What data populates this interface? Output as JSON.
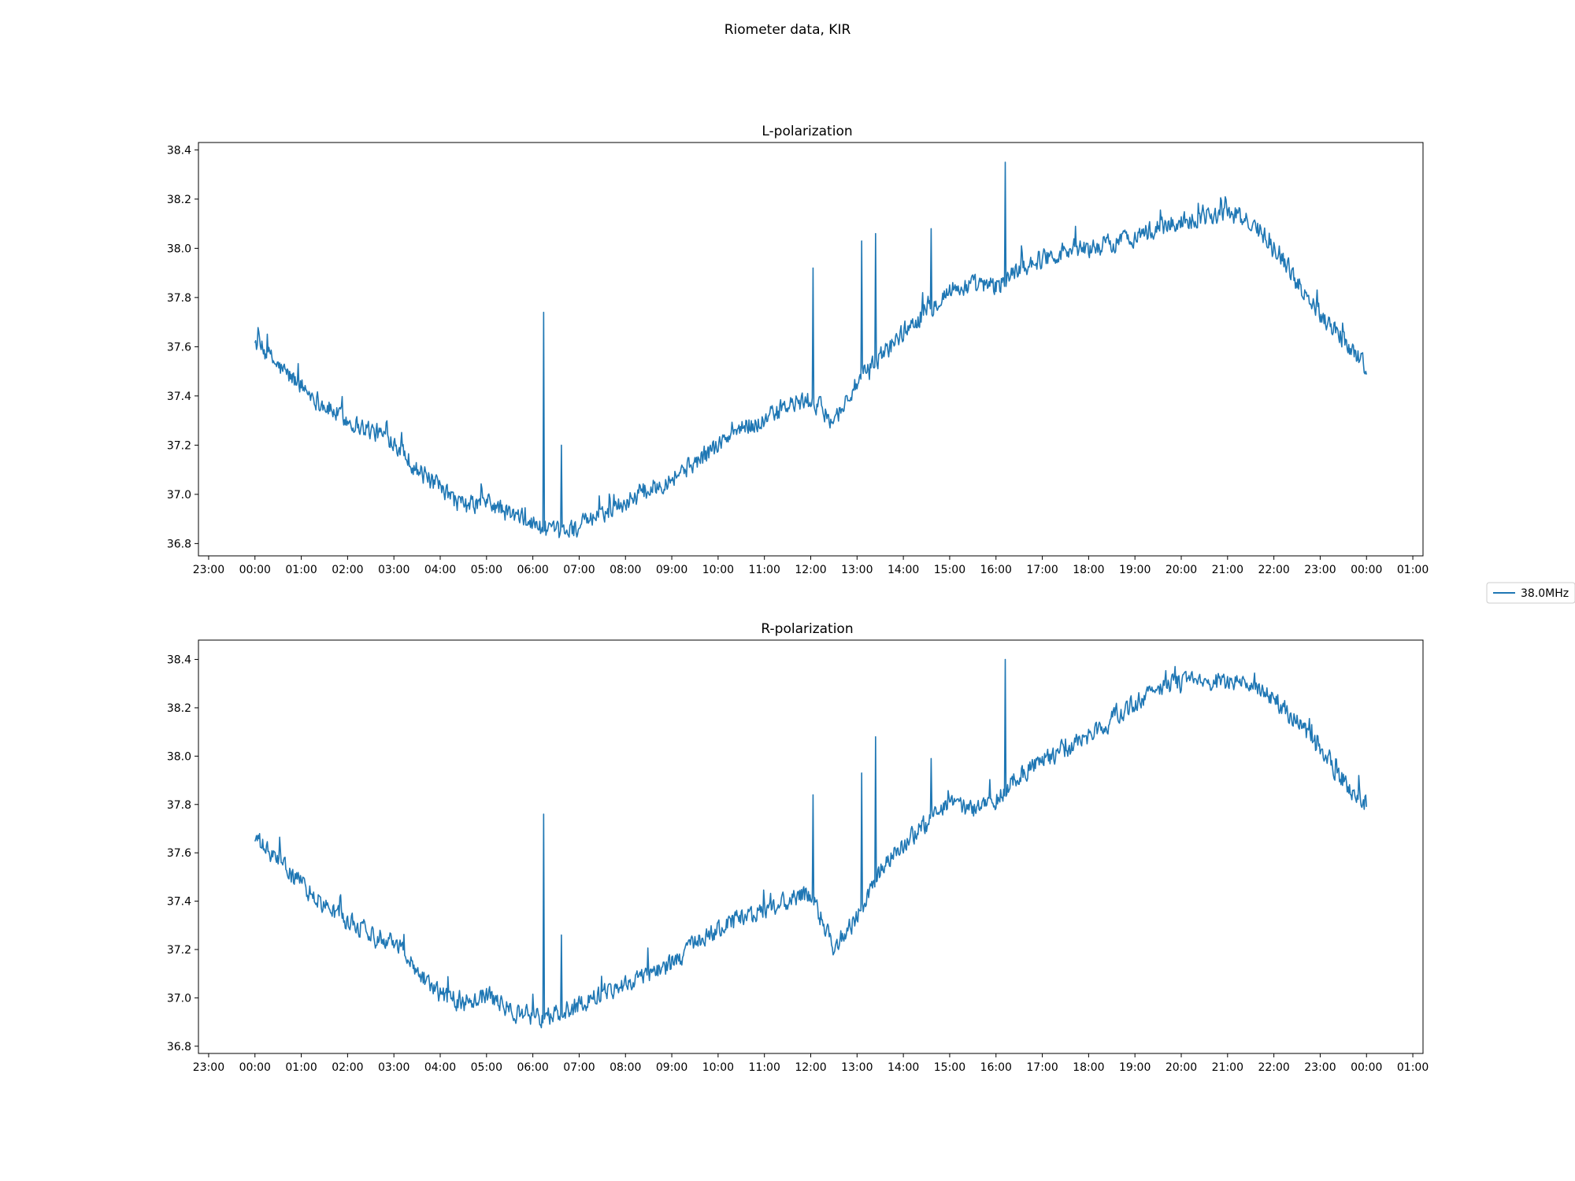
{
  "figure": {
    "title": "Riometer data, KIR"
  },
  "legend": {
    "label": "38.0MHz",
    "color": "#1f77b4",
    "placement": "center-right"
  },
  "x_tick_labels": [
    "23:00",
    "00:00",
    "01:00",
    "02:00",
    "03:00",
    "04:00",
    "05:00",
    "06:00",
    "07:00",
    "08:00",
    "09:00",
    "10:00",
    "11:00",
    "12:00",
    "13:00",
    "14:00",
    "15:00",
    "16:00",
    "17:00",
    "18:00",
    "19:00",
    "20:00",
    "21:00",
    "22:00",
    "23:00",
    "00:00",
    "01:00"
  ],
  "chart_data": [
    {
      "type": "line",
      "title": "L-polarization",
      "xlabel": "",
      "ylabel": "",
      "xlim": [
        "23:00",
        "01:00 (next day)"
      ],
      "x_unit": "hour of day",
      "ylim": [
        36.75,
        38.43
      ],
      "yticks": [
        36.8,
        37.0,
        37.2,
        37.4,
        37.6,
        37.8,
        38.0,
        38.2,
        38.4
      ],
      "grid": false,
      "series": [
        {
          "name": "38.0MHz",
          "color": "#1f77b4",
          "x": [
            0,
            0.5,
            1,
            1.5,
            2,
            2.5,
            3,
            3.5,
            4,
            4.5,
            5,
            5.5,
            6,
            6.5,
            7,
            7.5,
            8,
            8.5,
            9,
            9.5,
            10,
            10.5,
            11,
            11.5,
            12,
            12.5,
            13,
            13.5,
            14,
            14.5,
            15,
            15.5,
            16,
            16.5,
            17,
            17.5,
            18,
            18.5,
            19,
            19.5,
            20,
            20.5,
            21,
            21.5,
            22,
            22.5,
            23,
            23.5,
            24
          ],
          "y": [
            37.62,
            37.52,
            37.44,
            37.36,
            37.3,
            37.26,
            37.22,
            37.1,
            37.02,
            36.95,
            36.97,
            36.92,
            36.88,
            36.84,
            36.87,
            36.92,
            36.97,
            37.02,
            37.07,
            37.13,
            37.2,
            37.27,
            37.3,
            37.36,
            37.38,
            37.3,
            37.45,
            37.56,
            37.66,
            37.75,
            37.83,
            37.85,
            37.84,
            37.92,
            37.96,
            37.99,
            38.0,
            38.02,
            38.05,
            38.08,
            38.11,
            38.13,
            38.15,
            38.1,
            38.02,
            37.86,
            37.74,
            37.63,
            37.52
          ]
        }
      ],
      "spikes": [
        {
          "x": 6.23,
          "y": 37.74
        },
        {
          "x": 6.62,
          "y": 37.2
        },
        {
          "x": 12.05,
          "y": 37.92
        },
        {
          "x": 13.1,
          "y": 38.03
        },
        {
          "x": 13.4,
          "y": 38.06
        },
        {
          "x": 14.6,
          "y": 38.08
        },
        {
          "x": 16.2,
          "y": 38.35
        }
      ]
    },
    {
      "type": "line",
      "title": "R-polarization",
      "xlabel": "",
      "ylabel": "",
      "xlim": [
        "23:00",
        "01:00 (next day)"
      ],
      "x_unit": "hour of day",
      "ylim": [
        36.77,
        38.48
      ],
      "yticks": [
        36.8,
        37.0,
        37.2,
        37.4,
        37.6,
        37.8,
        38.0,
        38.2,
        38.4
      ],
      "grid": false,
      "series": [
        {
          "name": "38.0MHz",
          "color": "#1f77b4",
          "x": [
            0,
            0.5,
            1,
            1.5,
            2,
            2.5,
            3,
            3.5,
            4,
            4.5,
            5,
            5.5,
            6,
            6.5,
            7,
            7.5,
            8,
            8.5,
            9,
            9.5,
            10,
            10.5,
            11,
            11.5,
            12,
            12.5,
            13,
            13.5,
            14,
            14.5,
            15,
            15.5,
            16,
            16.5,
            17,
            17.5,
            18,
            18.5,
            19,
            19.5,
            20,
            20.5,
            21,
            21.5,
            22,
            22.5,
            23,
            23.5,
            24
          ],
          "y": [
            37.66,
            37.56,
            37.47,
            37.38,
            37.32,
            37.27,
            37.24,
            37.12,
            37.01,
            36.98,
            37.01,
            36.95,
            36.92,
            36.93,
            36.97,
            37.02,
            37.06,
            37.1,
            37.14,
            37.22,
            37.28,
            37.33,
            37.36,
            37.4,
            37.43,
            37.21,
            37.33,
            37.52,
            37.64,
            37.72,
            37.8,
            37.78,
            37.82,
            37.92,
            37.98,
            38.03,
            38.08,
            38.15,
            38.22,
            38.28,
            38.31,
            38.3,
            38.31,
            38.28,
            38.24,
            38.14,
            38.02,
            37.9,
            37.8
          ]
        }
      ],
      "spikes": [
        {
          "x": 6.23,
          "y": 37.76
        },
        {
          "x": 6.62,
          "y": 37.26
        },
        {
          "x": 12.05,
          "y": 37.84
        },
        {
          "x": 13.1,
          "y": 37.93
        },
        {
          "x": 13.4,
          "y": 38.08
        },
        {
          "x": 14.6,
          "y": 37.99
        },
        {
          "x": 16.2,
          "y": 38.4
        }
      ]
    }
  ]
}
